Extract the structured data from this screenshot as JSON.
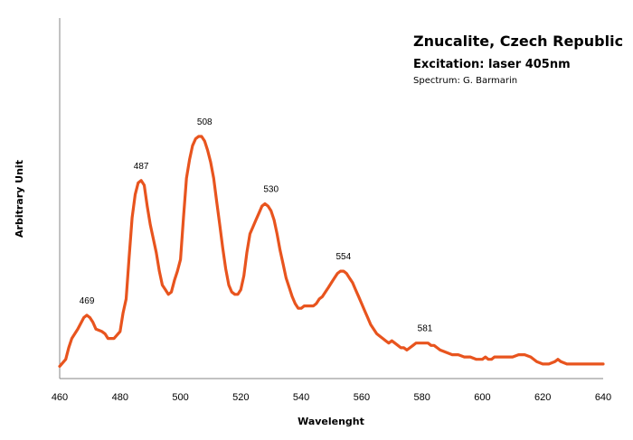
{
  "chart_data": {
    "type": "line",
    "title": "Znucalite, Czech Republic",
    "subtitle": "Excitation: laser 405nm",
    "credit": "Spectrum: G. Barmarin",
    "xlabel": "Wavelenght",
    "ylabel": "Arbitrary Unit",
    "xlim": [
      460,
      640
    ],
    "ylim": [
      0,
      100
    ],
    "xticks": [
      460,
      480,
      500,
      520,
      540,
      560,
      580,
      600,
      620,
      640
    ],
    "grid": false,
    "line_color": "#e8541e",
    "series": [
      {
        "x": [
          460,
          462,
          463,
          464,
          466,
          468,
          469,
          470,
          471,
          472,
          474,
          475,
          476,
          478,
          480,
          481,
          482,
          483,
          484,
          485,
          486,
          487,
          488,
          489,
          490,
          491,
          492,
          493,
          494,
          495,
          496,
          497,
          498,
          499,
          500,
          501,
          502,
          503,
          504,
          505,
          506,
          507,
          508,
          509,
          510,
          511,
          512,
          513,
          514,
          515,
          516,
          517,
          518,
          519,
          520,
          521,
          522,
          523,
          524,
          525,
          526,
          527,
          528,
          529,
          530,
          531,
          532,
          533,
          534,
          535,
          536,
          537,
          538,
          539,
          540,
          541,
          542,
          543,
          544,
          545,
          546,
          547,
          548,
          549,
          550,
          551,
          552,
          553,
          554,
          555,
          556,
          557,
          558,
          559,
          560,
          561,
          562,
          563,
          564,
          565,
          566,
          567,
          568,
          569,
          570,
          571,
          572,
          573,
          574,
          575,
          576,
          577,
          578,
          579,
          580,
          581,
          582,
          583,
          584,
          585,
          586,
          588,
          590,
          592,
          594,
          596,
          598,
          600,
          601,
          602,
          603,
          604,
          605,
          606,
          607,
          608,
          609,
          610,
          612,
          614,
          616,
          618,
          620,
          622,
          624,
          625,
          626,
          628,
          630,
          632,
          634,
          636,
          638,
          640
        ],
        "y": [
          1,
          4,
          9,
          13,
          17,
          22,
          23,
          22,
          20,
          17,
          16,
          15,
          13,
          13,
          16,
          24,
          30,
          48,
          65,
          75,
          80,
          81,
          79,
          70,
          62,
          56,
          50,
          42,
          36,
          34,
          32,
          33,
          38,
          42,
          47,
          65,
          82,
          90,
          96,
          99,
          100,
          100,
          98,
          94,
          89,
          82,
          72,
          62,
          52,
          43,
          36,
          33,
          32,
          32,
          34,
          40,
          50,
          58,
          61,
          64,
          67,
          70,
          71,
          70,
          68,
          64,
          58,
          51,
          45,
          39,
          35,
          31,
          28,
          26,
          26,
          27,
          27,
          27,
          27,
          28,
          30,
          31,
          33,
          35,
          37,
          39,
          41,
          42,
          42,
          41,
          39,
          37,
          34,
          31,
          28,
          25,
          22,
          19,
          17,
          15,
          14,
          13,
          12,
          11,
          12,
          11,
          10,
          9,
          9,
          8,
          9,
          10,
          11,
          11,
          11,
          11,
          11,
          10,
          10,
          9,
          8,
          7,
          6,
          6,
          5,
          5,
          4,
          4,
          5,
          4,
          4,
          5,
          5,
          5,
          5,
          5,
          5,
          5,
          6,
          6,
          5,
          3,
          2,
          2,
          3,
          4,
          3,
          2,
          2,
          2,
          2,
          2,
          2,
          2
        ]
      }
    ],
    "annotations": [
      {
        "x": 469,
        "y": 23,
        "text": "469"
      },
      {
        "x": 487,
        "y": 81,
        "text": "487"
      },
      {
        "x": 508,
        "y": 100,
        "text": "508"
      },
      {
        "x": 530,
        "y": 71,
        "text": "530"
      },
      {
        "x": 554,
        "y": 42,
        "text": "554"
      },
      {
        "x": 581,
        "y": 11,
        "text": "581"
      }
    ]
  }
}
